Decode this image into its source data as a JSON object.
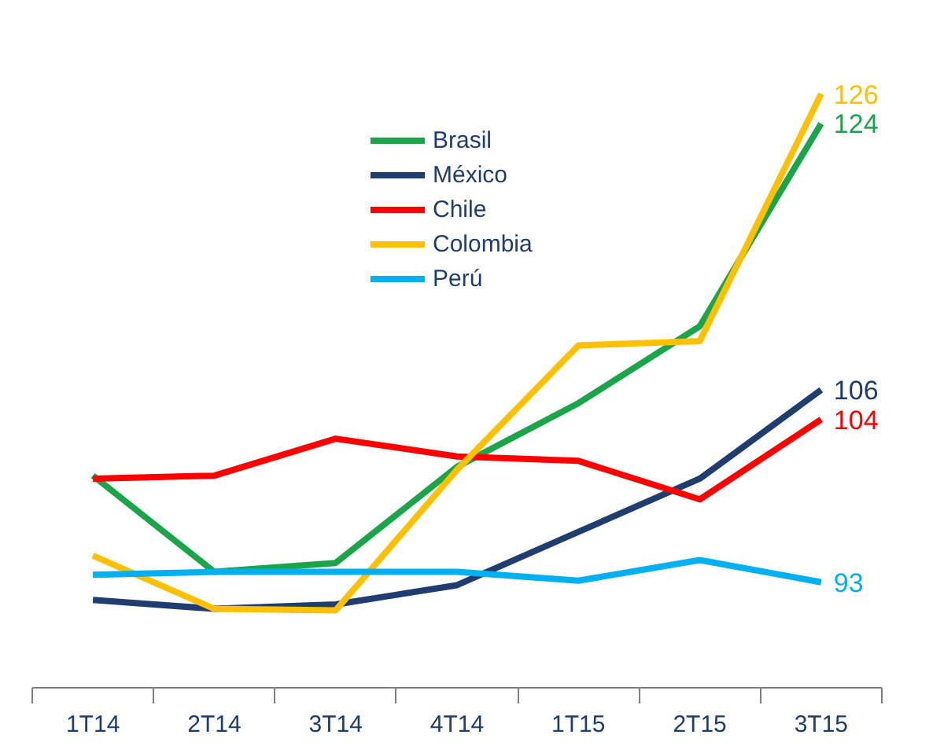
{
  "chart_data": {
    "type": "line",
    "categories": [
      "1T14",
      "2T14",
      "3T14",
      "4T14",
      "1T15",
      "2T15",
      "3T15"
    ],
    "series": [
      {
        "name": "Brasil",
        "color": "#1aa54a",
        "values": [
          100.2,
          93.7,
          94.3,
          100.8,
          105.1,
          110.3,
          124
        ],
        "value_labels": [
          null,
          null,
          null,
          null,
          null,
          null,
          "124"
        ]
      },
      {
        "name": "México",
        "color": "#1f3d6e",
        "values": [
          91.8,
          91.2,
          91.5,
          92.8,
          96.4,
          100.0,
          106
        ],
        "value_labels": [
          null,
          null,
          null,
          null,
          null,
          null,
          "106"
        ]
      },
      {
        "name": "Chile",
        "color": "#ff0000",
        "values": [
          100.0,
          100.2,
          102.7,
          101.5,
          101.2,
          98.6,
          104
        ],
        "value_labels": [
          null,
          null,
          null,
          null,
          null,
          null,
          "104"
        ]
      },
      {
        "name": "Colombia",
        "color": "#ffc000",
        "values": [
          94.8,
          91.2,
          91.1,
          100.6,
          109.0,
          109.3,
          126
        ],
        "value_labels": [
          null,
          null,
          null,
          null,
          null,
          null,
          "126"
        ]
      },
      {
        "name": "Perú",
        "color": "#00b0f0",
        "values": [
          93.5,
          93.7,
          93.7,
          93.7,
          93.1,
          94.5,
          93
        ],
        "value_labels": [
          null,
          null,
          null,
          null,
          null,
          null,
          "93"
        ]
      }
    ],
    "tick_labels": "x",
    "grid": false,
    "legend": "top",
    "marker": "none",
    "line_style": "solid"
  }
}
